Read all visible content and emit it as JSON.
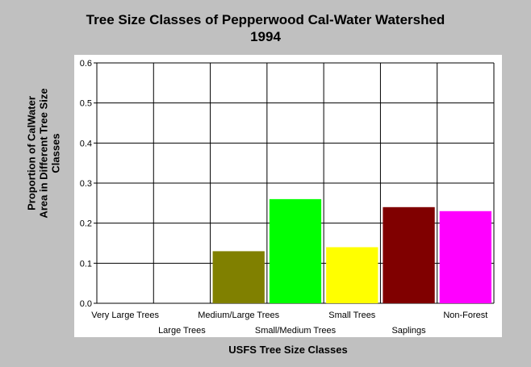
{
  "chart_data": {
    "type": "bar",
    "title": [
      "Tree Size Classes of Pepperwood Cal-Water Watershed",
      "1994"
    ],
    "xlabel": "USFS Tree Size Classes",
    "ylabel": [
      "Proportion of CalWater",
      "Area in Different Tree Size",
      "Classes"
    ],
    "categories": [
      "Very Large Trees",
      "Large Trees",
      "Medium/Large Trees",
      "Small/Medium Trees",
      "Small Trees",
      "Saplings",
      "Non-Forest"
    ],
    "values": [
      0,
      0,
      0.13,
      0.26,
      0.14,
      0.24,
      0.23
    ],
    "colors": [
      "#808000",
      "#808000",
      "#808000",
      "#00ff00",
      "#ffff00",
      "#800000",
      "#ff00ff"
    ],
    "yticks": [
      "0.0",
      "0.1",
      "0.2",
      "0.3",
      "0.4",
      "0.5",
      "0.6"
    ],
    "ylim": [
      0,
      0.6
    ],
    "grid": true,
    "legend": "none"
  }
}
